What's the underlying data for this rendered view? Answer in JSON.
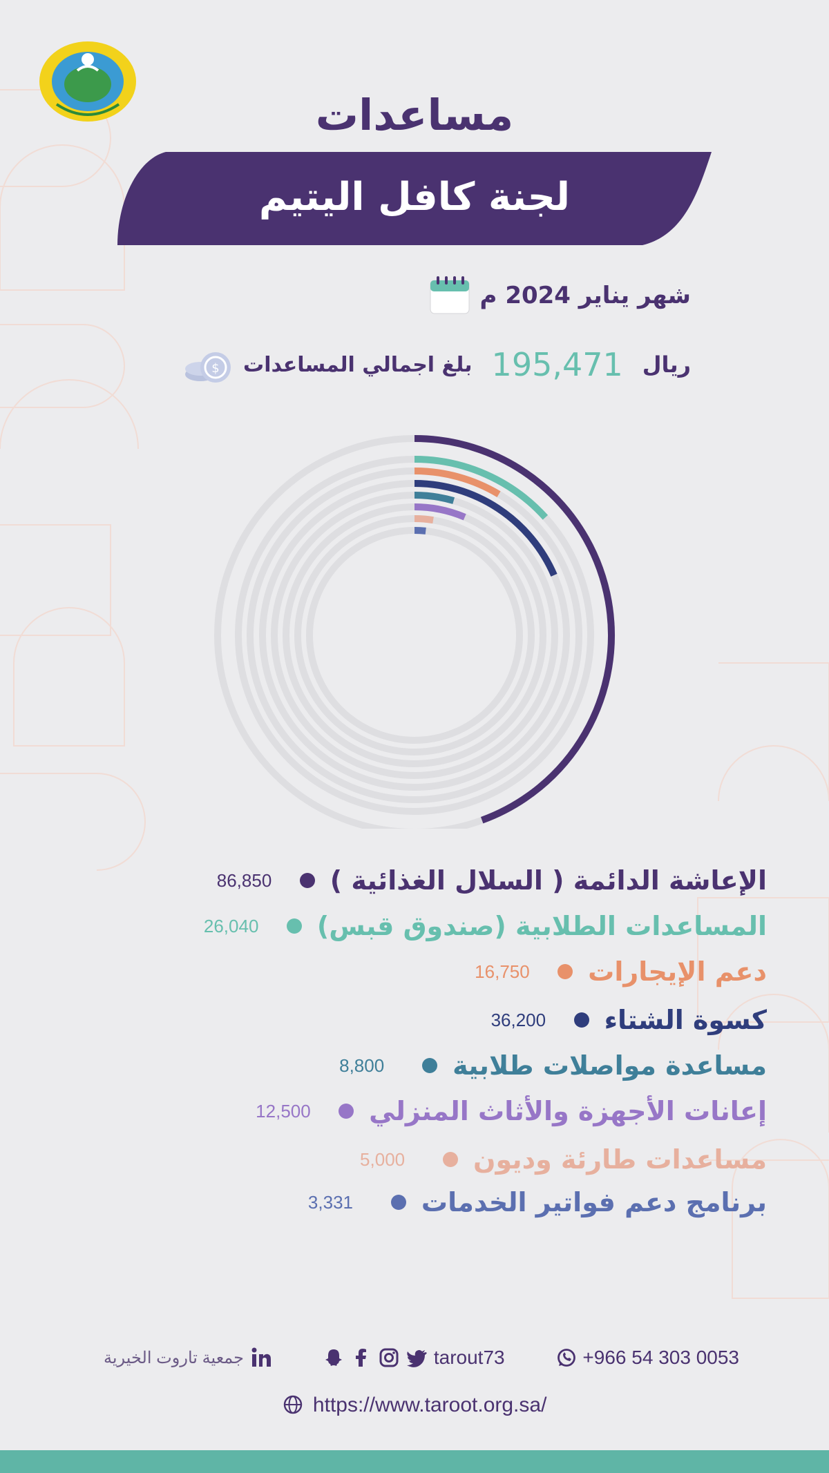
{
  "header": {
    "title_line1": "مساعدات",
    "title_line2": "لجنة كافل اليتيم",
    "month_text": "شهر يناير 2024 م",
    "total_prefix": "بلغ اجمالي المساعدات",
    "total_value": "195,471",
    "total_currency": "ريال"
  },
  "chart_data": {
    "type": "radial-bar",
    "total": 195471,
    "categories": [
      "الإعاشة الدائمة ( السلال الغذائية )",
      "المساعدات الطلابية (صندوق قبس)",
      "دعم الإيجارات",
      "كسوة الشتاء",
      "مساعدة مواصلات طلابية",
      "إعانات الأجهزة والأثاث المنزلي",
      "مساعدات طارئة وديون",
      "برنامج دعم فواتير الخدمات"
    ],
    "values": [
      86850,
      26040,
      16750,
      36200,
      8800,
      12500,
      5000,
      3331
    ],
    "value_labels": [
      "86,850",
      "26,040",
      "16,750",
      "36,200",
      "8,800",
      "12,500",
      "5,000",
      "3,331"
    ],
    "colors": [
      "#4a3270",
      "#67bfae",
      "#e8916a",
      "#2f3d7c",
      "#3f7f99",
      "#9776c7",
      "#e7b09e",
      "#5b6fb0"
    ],
    "track_color": "#dedee1"
  },
  "footer": {
    "phone": "+966 54 303 0053",
    "handle": "tarout73",
    "org_name": "جمعية تاروت الخيرية",
    "url": "https://www.taroot.org.sa/",
    "icons": [
      "whatsapp-icon",
      "twitter-icon",
      "instagram-icon",
      "facebook-icon",
      "snapchat-icon",
      "linkedin-icon",
      "globe-icon"
    ]
  },
  "colors": {
    "primary": "#4a3270",
    "accent": "#67bfae",
    "background": "#ececee",
    "bottom_bar": "#5fb5a6"
  }
}
